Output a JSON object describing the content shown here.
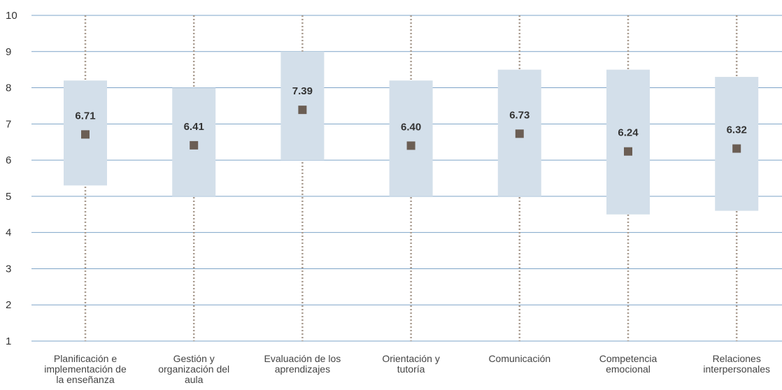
{
  "chart_data": {
    "type": "boxplot",
    "categories": [
      "Planificación e implementación de la enseñanza",
      "Gestión y organización del aula",
      "Evaluación de los aprendizajes",
      "Orientación y tutoría",
      "Comunicación",
      "Competencia emocional",
      "Relaciones interpersonales"
    ],
    "category_lines": [
      [
        "Planificación e",
        "implementación de",
        "la enseñanza"
      ],
      [
        "Gestión y",
        "organización del",
        "aula"
      ],
      [
        "Evaluación de los",
        "aprendizajes"
      ],
      [
        "Orientación y",
        "tutoría"
      ],
      [
        "Comunicación"
      ],
      [
        "Competencia",
        "emocional"
      ],
      [
        "Relaciones",
        "interpersonales"
      ]
    ],
    "whisker_low": [
      1,
      1,
      1,
      1,
      1,
      1,
      1
    ],
    "whisker_high": [
      10,
      10,
      10,
      10,
      10,
      10,
      10
    ],
    "q1": [
      5.3,
      5.0,
      6.0,
      5.0,
      5.0,
      4.5,
      4.6
    ],
    "q3": [
      8.2,
      8.0,
      9.0,
      8.2,
      8.5,
      8.5,
      8.3
    ],
    "means": [
      6.71,
      6.41,
      7.39,
      6.4,
      6.73,
      6.24,
      6.32
    ],
    "mean_labels": [
      "6.71",
      "6.41",
      "7.39",
      "6.40",
      "6.73",
      "6.24",
      "6.32"
    ],
    "yticks": [
      "1",
      "2",
      "3",
      "4",
      "5",
      "6",
      "7",
      "8",
      "9",
      "10"
    ],
    "ylim": [
      1,
      10
    ],
    "grid": true,
    "colors": {
      "box": "#d3dfea",
      "marker": "#6b5e54",
      "grid": "#7ea4c8",
      "whisker": "#a89a8e"
    }
  }
}
